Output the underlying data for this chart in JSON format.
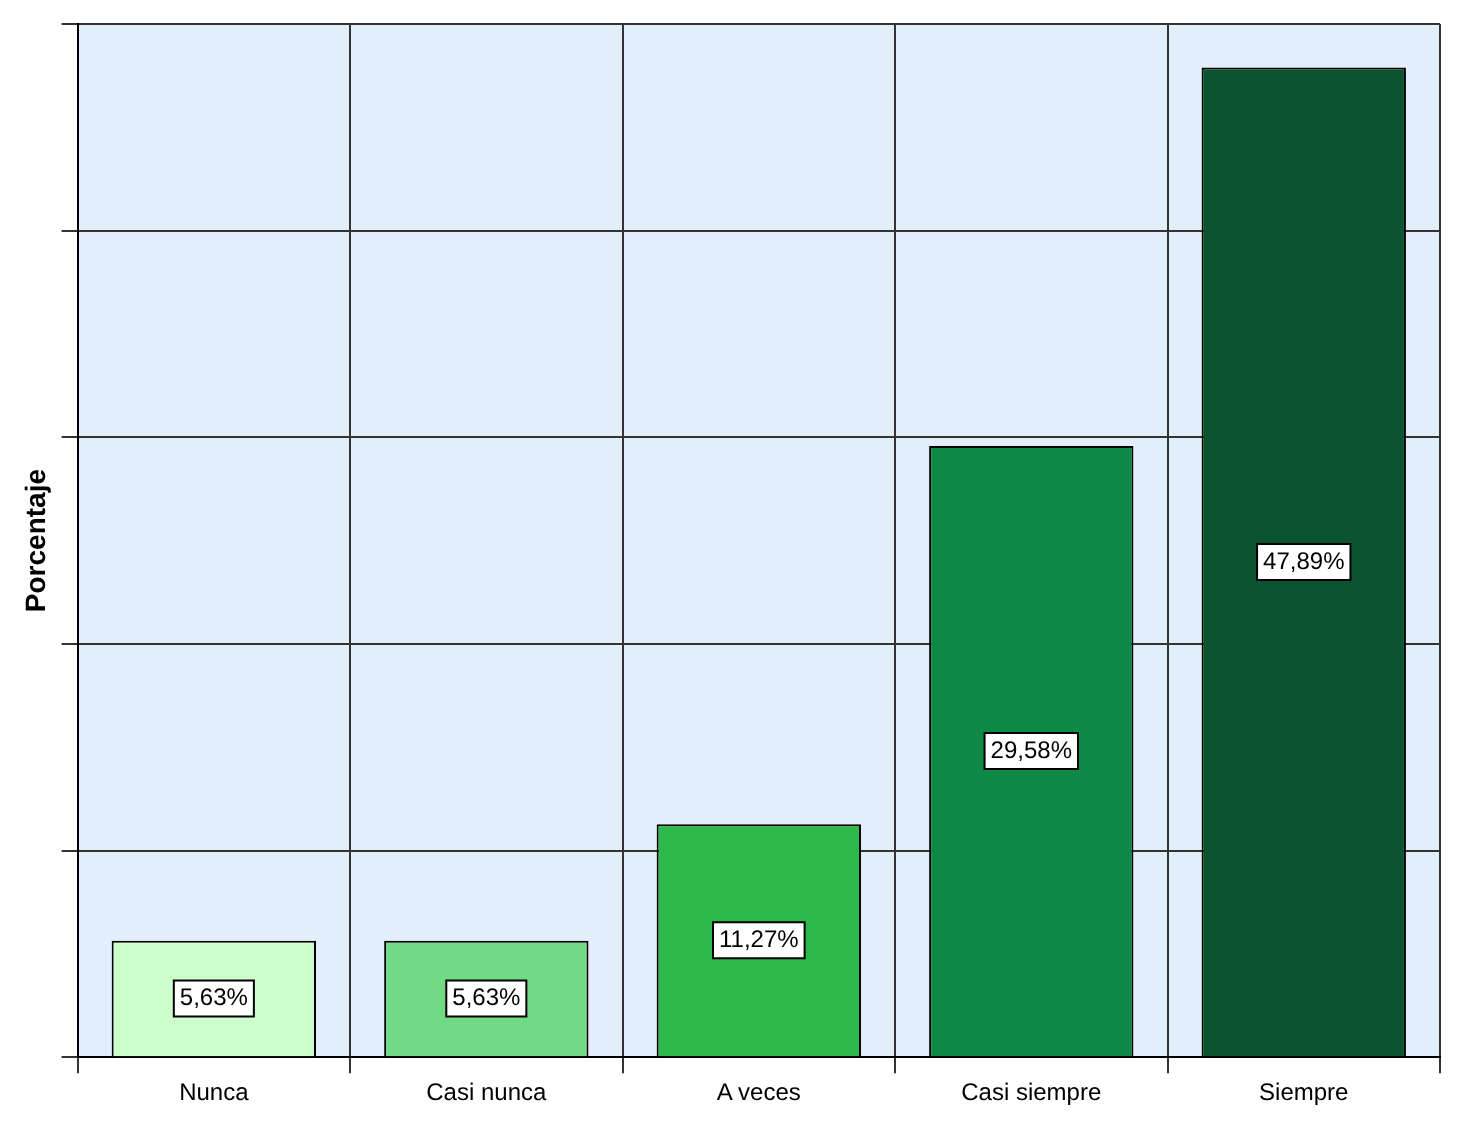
{
  "chart_data": {
    "type": "bar",
    "ylabel": "Porcentaje",
    "categories": [
      "Nunca",
      "Casi nunca",
      "A veces",
      "Casi siempre",
      "Siempre"
    ],
    "values": [
      5.63,
      5.63,
      11.27,
      29.58,
      47.89
    ],
    "colors": [
      "#ccffcc",
      "#70db84",
      "#2db84a",
      "#0f8a46",
      "#0a5530"
    ],
    "value_labels": [
      "5,63%",
      "5,63%",
      "11,27%",
      "29,58%",
      "47,89%"
    ],
    "ylim": [
      0,
      50
    ],
    "yticks": [
      {
        "value": 0,
        "label": null
      },
      {
        "value": 10,
        "label": null
      },
      {
        "value": 20,
        "label": null
      },
      {
        "value": 30,
        "label": null
      },
      {
        "value": 40,
        "label": null
      },
      {
        "value": 50,
        "label": null
      }
    ],
    "grid": true,
    "tick_labels": "x"
  }
}
